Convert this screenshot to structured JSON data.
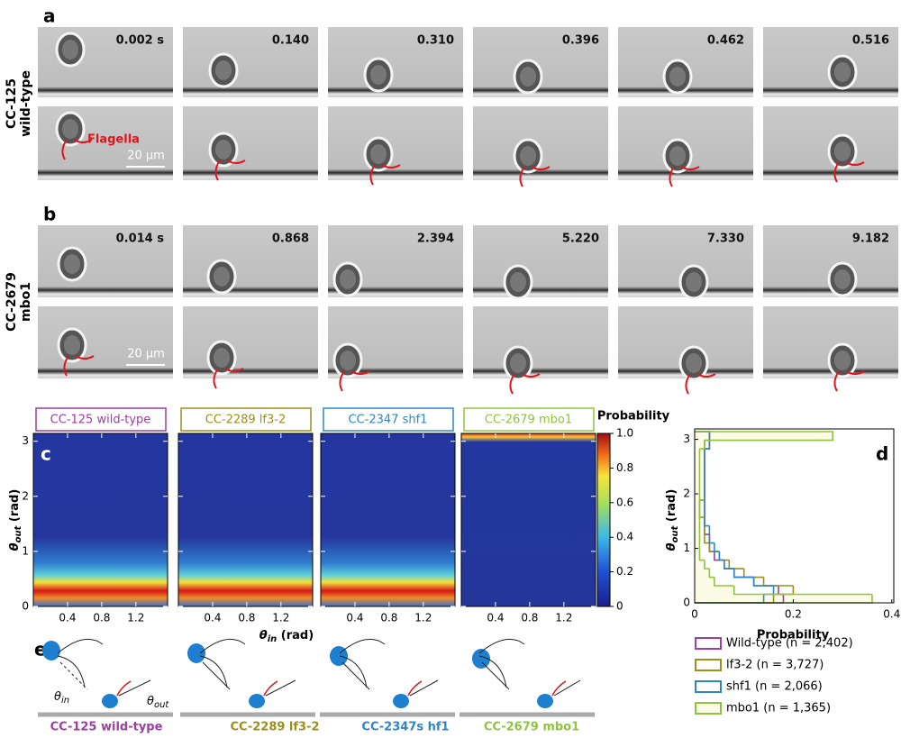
{
  "panels": {
    "a": {
      "label": "a",
      "strain": "CC-125",
      "genotype": "wild-type",
      "times": [
        "0.002 s",
        "0.140",
        "0.310",
        "0.396",
        "0.462",
        "0.516"
      ],
      "flagella": "Flagella",
      "scale": "20 μm"
    },
    "b": {
      "label": "b",
      "strain": "CC-2679",
      "genotype": "mbo1",
      "times": [
        "0.014 s",
        "0.868",
        "2.394",
        "5.220",
        "7.330",
        "9.182"
      ],
      "scale": "20 μm"
    },
    "c": {
      "label": "c",
      "titles": [
        "CC-125 wild-type",
        "CC-2289 lf3-2",
        "CC-2347 shf1",
        "CC-2679 mbo1"
      ],
      "xlabel": {
        "symbol": "θ",
        "sub": "in",
        "unit": " (rad)"
      },
      "ylabel": {
        "symbol": "θ",
        "sub": "out",
        "unit": " (rad)"
      },
      "xlim": [
        0,
        1.571
      ],
      "ylim": [
        0,
        3.142
      ],
      "xticks": [
        0.4,
        0.8,
        1.2
      ],
      "yticks": [
        0,
        1,
        2,
        3
      ],
      "colorbar": {
        "label": "Probability",
        "lim": [
          0,
          1
        ],
        "ticks": [
          0,
          0.2,
          0.4,
          0.6,
          0.8,
          {
            "value": 1,
            "label": "1.0"
          }
        ]
      }
    },
    "e": {
      "label": "e",
      "titles": [
        "CC-125 wild-type",
        "CC-2289 lf3-2",
        "CC-2347s hf1",
        "CC-2679 mbo1"
      ],
      "symbol": "θ",
      "in": "in",
      "out": "out"
    }
  },
  "chart_data": {
    "type": "histogram",
    "label": "d",
    "orientation": "horizontal",
    "xlabel": "Probability",
    "ylabel": {
      "symbol": "θ",
      "sub": "out",
      "unit": " (rad)"
    },
    "xlim": [
      0,
      0.404
    ],
    "ylim": [
      0,
      3.142
    ],
    "xticks": [
      0,
      0.2,
      0.4
    ],
    "yticks": [
      0,
      1,
      2,
      3
    ],
    "bins": [
      0,
      0.157,
      0.314,
      0.471,
      0.628,
      0.785,
      0.942,
      1.099,
      1.256,
      1.413,
      1.571,
      1.728,
      1.885,
      2.042,
      2.199,
      2.356,
      2.513,
      2.67,
      2.827,
      2.984,
      3.142
    ],
    "series": [
      {
        "name": "Wild-type (n = 2,402)",
        "color": "#9b3fa0",
        "values": [
          0.18,
          0.17,
          0.12,
          0.08,
          0.06,
          0.04,
          0.03,
          0.03,
          0.02,
          0.02,
          0.02,
          0.02,
          0.02,
          0.02,
          0.02,
          0.02,
          0.02,
          0.02,
          0.03,
          0.03
        ]
      },
      {
        "name": "lf3-2 (n = 3,727)",
        "color": "#9c8f1b",
        "values": [
          0.16,
          0.2,
          0.14,
          0.1,
          0.07,
          0.05,
          0.03,
          0.02,
          0.02,
          0.02,
          0.01,
          0.01,
          0.02,
          0.02,
          0.02,
          0.02,
          0.02,
          0.02,
          0.02,
          0.03
        ]
      },
      {
        "name": "shf1 (n = 2,066)",
        "color": "#2e86c8",
        "values": [
          0.14,
          0.16,
          0.12,
          0.08,
          0.06,
          0.05,
          0.04,
          0.03,
          0.03,
          0.02,
          0.02,
          0.02,
          0.02,
          0.02,
          0.02,
          0.02,
          0.02,
          0.02,
          0.03,
          0.03
        ]
      },
      {
        "name": "mbo1 (n = 1,365)",
        "color": "#8fc53d",
        "fill": "#fbfbe6",
        "values": [
          0.36,
          0.08,
          0.04,
          0.03,
          0.02,
          0.01,
          0.01,
          0.01,
          0.01,
          0.01,
          0.01,
          0.01,
          0.01,
          0.01,
          0.01,
          0.01,
          0.01,
          0.01,
          0.02,
          0.28
        ]
      }
    ]
  }
}
